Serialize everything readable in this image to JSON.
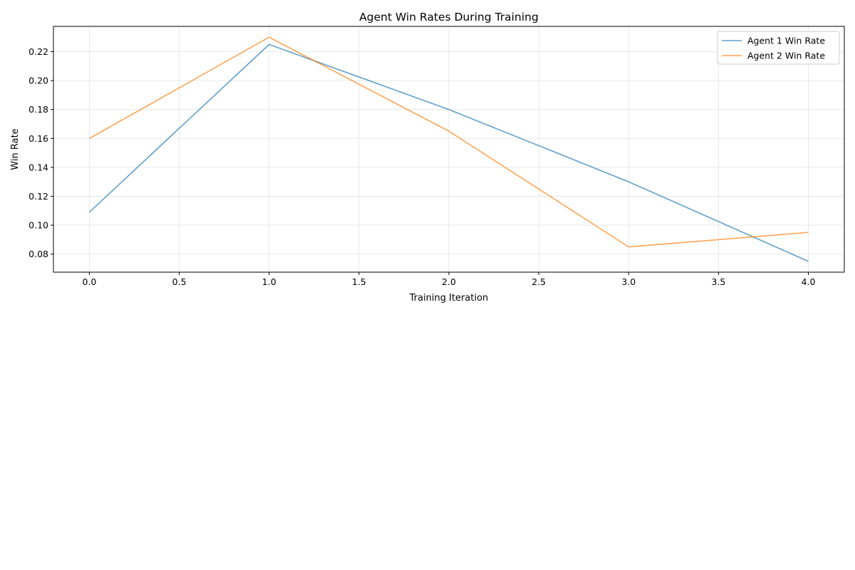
{
  "chart_data": {
    "type": "line",
    "title": "Agent Win Rates During Training",
    "xlabel": "Training Iteration",
    "ylabel": "Win Rate",
    "x": [
      0,
      1,
      2,
      3,
      4
    ],
    "series": [
      {
        "name": "Agent 1 Win Rate",
        "color": "#1f77b4",
        "values": [
          0.109,
          0.225,
          0.18,
          0.13,
          0.075
        ]
      },
      {
        "name": "Agent 2 Win Rate",
        "color": "#ff7f0e",
        "values": [
          0.16,
          0.23,
          0.165,
          0.085,
          0.095
        ]
      }
    ],
    "xlim": [
      -0.2,
      4.2
    ],
    "ylim": [
      0.0675,
      0.2375
    ],
    "xticks": [
      0.0,
      0.5,
      1.0,
      1.5,
      2.0,
      2.5,
      3.0,
      3.5,
      4.0
    ],
    "xtick_labels": [
      "0.0",
      "0.5",
      "1.0",
      "1.5",
      "2.0",
      "2.5",
      "3.0",
      "3.5",
      "4.0"
    ],
    "yticks": [
      0.08,
      0.1,
      0.12,
      0.14,
      0.16,
      0.18,
      0.2,
      0.22
    ],
    "ytick_labels": [
      "0.08",
      "0.10",
      "0.12",
      "0.14",
      "0.16",
      "0.18",
      "0.20",
      "0.22"
    ],
    "grid": true,
    "legend_position": "top-right"
  }
}
